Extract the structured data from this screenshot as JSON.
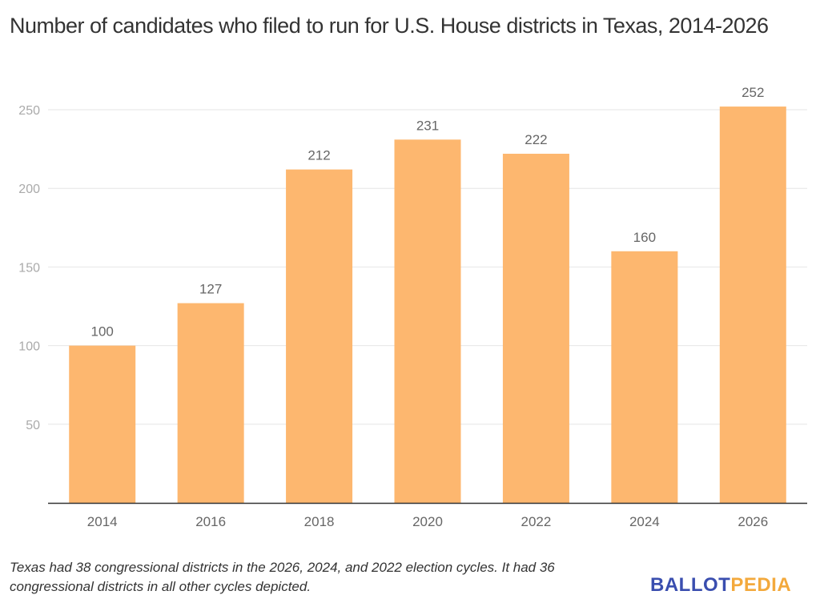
{
  "chart_data": {
    "type": "bar",
    "title": "Number of candidates who filed to run for U.S. House districts in Texas, 2014-2026",
    "xlabel": "",
    "ylabel": "",
    "categories": [
      "2014",
      "2016",
      "2018",
      "2020",
      "2022",
      "2024",
      "2026"
    ],
    "values": [
      100,
      127,
      212,
      231,
      222,
      160,
      252
    ],
    "data_labels": [
      "100",
      "127",
      "212",
      "231",
      "222",
      "160",
      "252"
    ],
    "ylim": [
      0,
      250
    ],
    "yticks": [
      50,
      100,
      150,
      200,
      250
    ],
    "grid": true,
    "bar_color": "#fdb76f",
    "note": "Texas had 38 congressional districts in the 2026, 2024, and 2022 election cycles. It had 36 congressional districts in all other cycles depicted."
  },
  "branding": {
    "logo_part1": "BALLOT",
    "logo_part2": "PEDIA"
  }
}
